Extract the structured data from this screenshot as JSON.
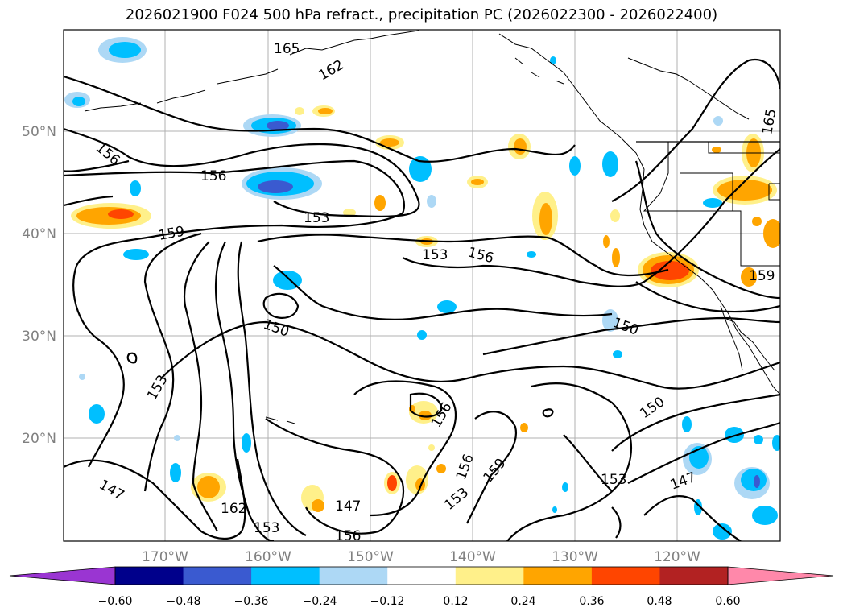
{
  "title": "2026021900 F024 500 hPa refract., precipitation PC (2026022300 - 2026022400)",
  "axes": {
    "lat_labels": [
      "50°N",
      "40°N",
      "30°N",
      "20°N"
    ],
    "lon_labels": [
      "170°W",
      "160°W",
      "150°W",
      "140°W",
      "130°W",
      "120°W"
    ]
  },
  "contour_labels": [
    "165",
    "162",
    "156",
    "156",
    "153",
    "159",
    "153",
    "156",
    "150",
    "150",
    "153",
    "156",
    "159",
    "156",
    "153",
    "147",
    "147",
    "162",
    "153",
    "156",
    "150",
    "153",
    "147",
    "159",
    "165"
  ],
  "colorbar": {
    "tick_labels": [
      "−0.60",
      "−0.48",
      "−0.36",
      "−0.24",
      "−0.12",
      "0.12",
      "0.24",
      "0.36",
      "0.48",
      "0.60"
    ],
    "colors": [
      "#9a35d2",
      "#00008b",
      "#3a5ad0",
      "#00bfff",
      "#add8f5",
      "#ffffff",
      "#fff08a",
      "#ffa500",
      "#ff4500",
      "#b22222",
      "#ff88aa"
    ]
  }
}
